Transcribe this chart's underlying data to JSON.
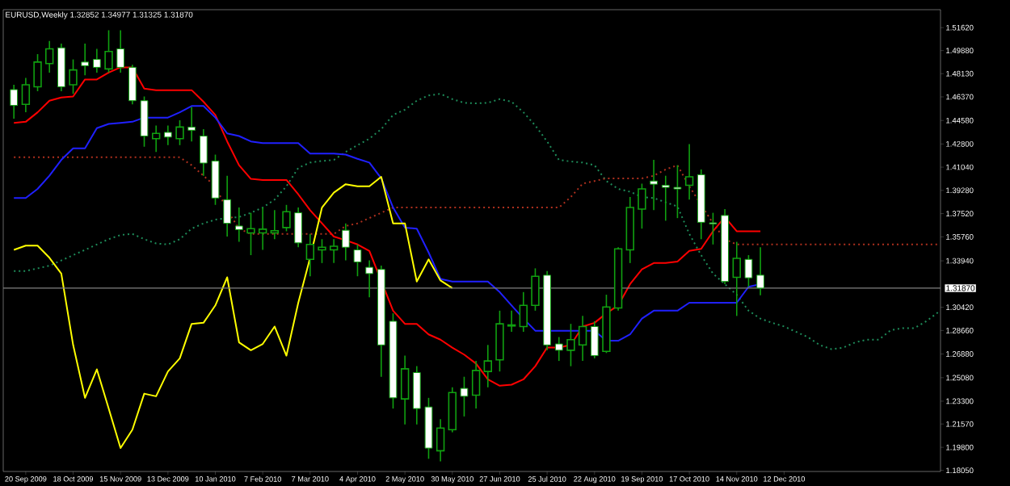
{
  "chart_data": {
    "type": "candlestick",
    "title": "EURUSD,Weekly  1.32852 1.34977 1.31325 1.31870",
    "categories": [
      null,
      "20 Sep 2009",
      null,
      null,
      null,
      "18 Oct 2009",
      null,
      null,
      null,
      "15 Nov 2009",
      null,
      null,
      null,
      "13 Dec 2009",
      null,
      null,
      null,
      "10 Jan 2010",
      null,
      null,
      null,
      "7 Feb 2010",
      null,
      null,
      null,
      "7 Mar 2010",
      null,
      null,
      null,
      "4 Apr 2010",
      null,
      null,
      null,
      "2 May 2010",
      null,
      null,
      null,
      "30 May 2010",
      null,
      null,
      null,
      "27 Jun 2010",
      null,
      null,
      null,
      "25 Jul 2010",
      null,
      null,
      null,
      "22 Aug 2010",
      null,
      null,
      null,
      "19 Sep 2010",
      null,
      null,
      null,
      "17 Oct 2010",
      null,
      null,
      null,
      "14 Nov 2010",
      null,
      null,
      null,
      "12 Dec 2010",
      null,
      null,
      null,
      null,
      null,
      null,
      null,
      null,
      null,
      null,
      null,
      null,
      null
    ],
    "ohlc": [
      [
        1.4692,
        1.4729,
        1.4472,
        1.4572
      ],
      [
        1.458,
        1.4781,
        1.452,
        1.4729
      ],
      [
        1.4713,
        1.4961,
        1.468,
        1.4901
      ],
      [
        1.4889,
        1.5061,
        1.4821,
        1.5001
      ],
      [
        1.5009,
        1.5041,
        1.468,
        1.4713
      ],
      [
        1.4729,
        1.4921,
        1.466,
        1.4841
      ],
      [
        1.4901,
        1.5041,
        1.4801,
        1.4873
      ],
      [
        1.4921,
        1.5001,
        1.4821,
        1.4861
      ],
      [
        1.4849,
        1.5142,
        1.4821,
        1.4981
      ],
      [
        1.5001,
        1.5142,
        1.4821,
        1.4861
      ],
      [
        1.4861,
        1.4881,
        1.458,
        1.4608
      ],
      [
        1.4608,
        1.464,
        1.4259,
        1.434
      ],
      [
        1.432,
        1.442,
        1.4219,
        1.436
      ],
      [
        1.4368,
        1.442,
        1.4271,
        1.4332
      ],
      [
        1.432,
        1.446,
        1.4271,
        1.4408
      ],
      [
        1.4408,
        1.456,
        1.4299,
        1.4384
      ],
      [
        1.434,
        1.4392,
        1.4039,
        1.4135
      ],
      [
        1.4151,
        1.4199,
        1.3818,
        1.387
      ],
      [
        1.3858,
        1.4039,
        1.3578,
        1.3678
      ],
      [
        1.3658,
        1.3798,
        1.3538,
        1.363
      ],
      [
        1.3606,
        1.3758,
        1.3437,
        1.3638
      ],
      [
        1.3606,
        1.3798,
        1.3477,
        1.3634
      ],
      [
        1.3606,
        1.3778,
        1.3558,
        1.3622
      ],
      [
        1.3646,
        1.3818,
        1.3618,
        1.3766
      ],
      [
        1.3758,
        1.3798,
        1.3497,
        1.353
      ],
      [
        1.3405,
        1.3598,
        1.3277,
        1.3518
      ],
      [
        1.3477,
        1.3558,
        1.3377,
        1.3497
      ],
      [
        1.3477,
        1.3558,
        1.3377,
        1.3505
      ],
      [
        1.3626,
        1.3678,
        1.3397,
        1.3497
      ],
      [
        1.3477,
        1.3518,
        1.3277,
        1.3385
      ],
      [
        1.3345,
        1.3397,
        1.3117,
        1.3297
      ],
      [
        1.3329,
        1.3357,
        1.2515,
        1.2756
      ],
      [
        1.2936,
        1.2996,
        1.2274,
        1.2355
      ],
      [
        1.2347,
        1.2675,
        1.2154,
        1.2575
      ],
      [
        1.2547,
        1.2595,
        1.2154,
        1.2274
      ],
      [
        1.2286,
        1.2355,
        1.1893,
        1.1974
      ],
      [
        1.1954,
        1.2194,
        1.1873,
        1.2126
      ],
      [
        1.2114,
        1.2435,
        1.2094,
        1.2395
      ],
      [
        1.2427,
        1.2515,
        1.2214,
        1.2367
      ],
      [
        1.2375,
        1.2635,
        1.2274,
        1.2563
      ],
      [
        1.2555,
        1.2756,
        1.2435,
        1.2635
      ],
      [
        1.2643,
        1.3016,
        1.2555,
        1.2916
      ],
      [
        1.29,
        1.3016,
        1.2856,
        1.2908
      ],
      [
        1.2896,
        1.3157,
        1.2856,
        1.3056
      ],
      [
        1.3056,
        1.3337,
        1.3016,
        1.3277
      ],
      [
        1.3285,
        1.3317,
        1.2716,
        1.2756
      ],
      [
        1.2764,
        1.2816,
        1.2635,
        1.2716
      ],
      [
        1.2716,
        1.2916,
        1.2595,
        1.2796
      ],
      [
        1.2756,
        1.2976,
        1.2635,
        1.2896
      ],
      [
        1.2896,
        1.2936,
        1.2655,
        1.2675
      ],
      [
        1.2707,
        1.3137,
        1.2695,
        1.3044
      ],
      [
        1.3036,
        1.3497,
        1.3016,
        1.3485
      ],
      [
        1.3477,
        1.3878,
        1.3377,
        1.3798
      ],
      [
        1.3786,
        1.3979,
        1.3638,
        1.3939
      ],
      [
        1.3999,
        1.4159,
        1.3778,
        1.3975
      ],
      [
        1.3967,
        1.4039,
        1.3698,
        1.3951
      ],
      [
        1.3951,
        1.4119,
        1.3718,
        1.3939
      ],
      [
        1.3967,
        1.4279,
        1.3858,
        1.4031
      ],
      [
        1.4047,
        1.4087,
        1.3558,
        1.3686
      ],
      [
        1.3682,
        1.3758,
        1.3518,
        1.3674
      ],
      [
        1.3738,
        1.3786,
        1.3217,
        1.3237
      ],
      [
        1.3269,
        1.3538,
        1.2976,
        1.3413
      ],
      [
        1.3405,
        1.3437,
        1.3197,
        1.3265
      ],
      [
        1.32852,
        1.34977,
        1.31325,
        1.3187
      ],
      null,
      null,
      null,
      null,
      null,
      null,
      null,
      null,
      null,
      null,
      null,
      null,
      null,
      null,
      null
    ],
    "series": [
      {
        "type": "line",
        "color": "#1e8c5a",
        "line_style": "dotted",
        "values": [
          1.3317,
          1.3317,
          1.3337,
          1.3357,
          1.3397,
          1.3437,
          1.3477,
          1.3518,
          1.3558,
          1.359,
          1.3598,
          1.3558,
          1.3526,
          1.3518,
          1.3558,
          1.3638,
          1.3678,
          1.3706,
          1.3718,
          1.3726,
          1.3758,
          1.3798,
          1.3858,
          1.3959,
          1.4099,
          1.4139,
          1.4151,
          1.4159,
          1.4219,
          1.4271,
          1.432,
          1.4392,
          1.45,
          1.454,
          1.4608,
          1.4648,
          1.466,
          1.462,
          1.4592,
          1.4588,
          1.4592,
          1.462,
          1.46,
          1.452,
          1.442,
          1.4299,
          1.4159,
          1.4147,
          1.4139,
          1.4119,
          1.3999,
          1.3939,
          1.3918,
          1.3878,
          1.387,
          1.3838,
          1.3806,
          1.3598,
          1.3437,
          1.3297,
          1.3217,
          1.3137,
          1.3016,
          1.2956,
          1.2924,
          1.2896,
          1.2856,
          1.2816,
          1.2756,
          1.2724,
          1.2736,
          1.2776,
          1.2796,
          1.2796,
          1.2868,
          1.2884,
          1.2884,
          1.2936,
          1.3004
        ]
      },
      {
        "type": "line",
        "color": "#b0301e",
        "line_style": "dotted",
        "values": [
          1.4179,
          1.4179,
          1.4179,
          1.4179,
          1.4179,
          1.4179,
          1.4179,
          1.4179,
          1.4179,
          1.4179,
          1.4179,
          1.4179,
          1.4179,
          1.4179,
          1.4179,
          1.4119,
          1.4039,
          1.3959,
          1.3778,
          1.3638,
          1.3598,
          1.3598,
          1.3598,
          1.3598,
          1.3598,
          1.3598,
          1.3598,
          1.3598,
          1.3658,
          1.3678,
          1.3718,
          1.3758,
          1.3798,
          1.3798,
          1.3798,
          1.3798,
          1.3798,
          1.3798,
          1.3798,
          1.3798,
          1.3798,
          1.3798,
          1.3798,
          1.3798,
          1.3798,
          1.3798,
          1.3798,
          1.3878,
          1.3979,
          1.3999,
          1.4019,
          1.4019,
          1.4019,
          1.4019,
          1.4039,
          1.4087,
          1.4119,
          1.3959,
          null,
          1.3678,
          1.3558,
          1.3518,
          1.3518,
          1.3518,
          1.3518,
          1.3518,
          1.3518,
          1.3518,
          1.3518,
          1.3518,
          1.3518,
          1.3518,
          1.3518,
          1.3518,
          1.3518,
          1.3518,
          1.3518,
          1.3518,
          1.3518
        ]
      },
      {
        "type": "line",
        "color": "#ff0000",
        "line_style": "solid",
        "values": [
          1.444,
          1.4448,
          1.452,
          1.4608,
          1.4632,
          1.464,
          1.4769,
          1.4769,
          1.4821,
          1.4861,
          1.4861,
          1.47,
          1.4688,
          1.4688,
          1.4688,
          1.4688,
          1.46,
          1.45,
          1.4299,
          1.4119,
          1.4015,
          1.4007,
          1.4007,
          1.4007,
          1.3898,
          1.3778,
          1.3678,
          1.3578,
          1.355,
          1.3518,
          1.3469,
          null,
          1.3016,
          1.2916,
          1.2916,
          1.2836,
          1.2796,
          1.2736,
          1.2683,
          1.2615,
          1.2495,
          1.2447,
          1.2455,
          1.2495,
          1.2595,
          1.2736,
          1.2736,
          1.2756,
          1.2896,
          1.2924,
          1.2996,
          1.3056,
          1.3217,
          1.3329,
          1.3377,
          1.3377,
          1.3389,
          1.3469,
          1.3485,
          1.3618,
          1.3726,
          1.3618,
          1.3618,
          1.3618,
          null,
          null,
          null,
          null,
          null,
          null,
          null,
          null,
          null,
          null,
          null,
          null,
          null,
          null,
          null
        ]
      },
      {
        "type": "line",
        "color": "#2020ff",
        "line_style": "solid",
        "values": [
          1.387,
          1.387,
          1.3939,
          1.4039,
          1.4159,
          1.4247,
          1.4247,
          1.44,
          1.4432,
          1.444,
          1.4448,
          1.448,
          1.448,
          1.448,
          1.452,
          1.4568,
          1.4568,
          1.448,
          1.436,
          1.434,
          1.4299,
          1.4287,
          1.4287,
          1.4287,
          1.4287,
          1.4207,
          1.4207,
          1.4207,
          1.4199,
          1.4167,
          1.4139,
          1.4019,
          1.3798,
          1.3646,
          1.3638,
          1.3457,
          1.3257,
          1.3237,
          1.3237,
          1.3237,
          1.3237,
          1.3157,
          1.3056,
          1.2956,
          1.2864,
          1.2864,
          1.2864,
          1.2864,
          1.2864,
          1.2864,
          1.2788,
          1.2788,
          1.2836,
          1.2956,
          1.3016,
          1.3016,
          1.3016,
          1.3076,
          1.3076,
          1.3076,
          1.3076,
          1.3076,
          1.3197,
          1.3217,
          null,
          null,
          null,
          null,
          null,
          null,
          null,
          null,
          null,
          null,
          null,
          null,
          null,
          null,
          null
        ]
      },
      {
        "type": "line",
        "color": "#ffff00",
        "line_style": "solid",
        "values": [
          1.3477,
          1.3509,
          1.3509,
          1.3417,
          1.3297,
          1.2756,
          1.2355,
          1.2571,
          1.2274,
          1.1974,
          1.2114,
          1.2387,
          1.2367,
          1.2555,
          1.2655,
          1.2916,
          1.2924,
          1.3056,
          1.3269,
          1.2776,
          1.2716,
          1.2764,
          1.2896,
          1.2675,
          1.3076,
          1.3417,
          1.3798,
          1.3911,
          1.3975,
          1.3959,
          1.3959,
          1.4031,
          1.3678,
          1.3678,
          1.3237,
          1.3405,
          1.3245,
          1.3187,
          null,
          null,
          null,
          null,
          null,
          null,
          null,
          null,
          null,
          null,
          null,
          null,
          null,
          null,
          null,
          null,
          null,
          null,
          null,
          null,
          null,
          null,
          null,
          null,
          null,
          null,
          null,
          null,
          null,
          null,
          null,
          null,
          null,
          null,
          null,
          null,
          null,
          null,
          null,
          null,
          null
        ]
      }
    ],
    "ylim": [
      1.1797,
      1.5298
    ],
    "yticks": [
      {
        "value": 1.1805,
        "label": "1.18050"
      },
      {
        "value": 1.198,
        "label": "1.19800"
      },
      {
        "value": 1.2157,
        "label": "1.21570"
      },
      {
        "value": 1.233,
        "label": "1.23300"
      },
      {
        "value": 1.2508,
        "label": "1.25080"
      },
      {
        "value": 1.2688,
        "label": "1.26880"
      },
      {
        "value": 1.2866,
        "label": "1.28660"
      },
      {
        "value": 1.3042,
        "label": "1.30420"
      },
      {
        "value": 1.3394,
        "label": "1.33940"
      },
      {
        "value": 1.3576,
        "label": "1.35760"
      },
      {
        "value": 1.3752,
        "label": "1.37520"
      },
      {
        "value": 1.3928,
        "label": "1.39280"
      },
      {
        "value": 1.4104,
        "label": "1.41040"
      },
      {
        "value": 1.428,
        "label": "1.42800"
      },
      {
        "value": 1.4458,
        "label": "1.44580"
      },
      {
        "value": 1.4637,
        "label": "1.46370"
      },
      {
        "value": 1.4813,
        "label": "1.48130"
      },
      {
        "value": 1.4988,
        "label": "1.49880"
      },
      {
        "value": 1.5162,
        "label": "1.51620"
      }
    ],
    "ref_lines": [
      {
        "axis": "y",
        "value": 1.3187,
        "label": "1.31870",
        "color": "#808080"
      }
    ]
  }
}
